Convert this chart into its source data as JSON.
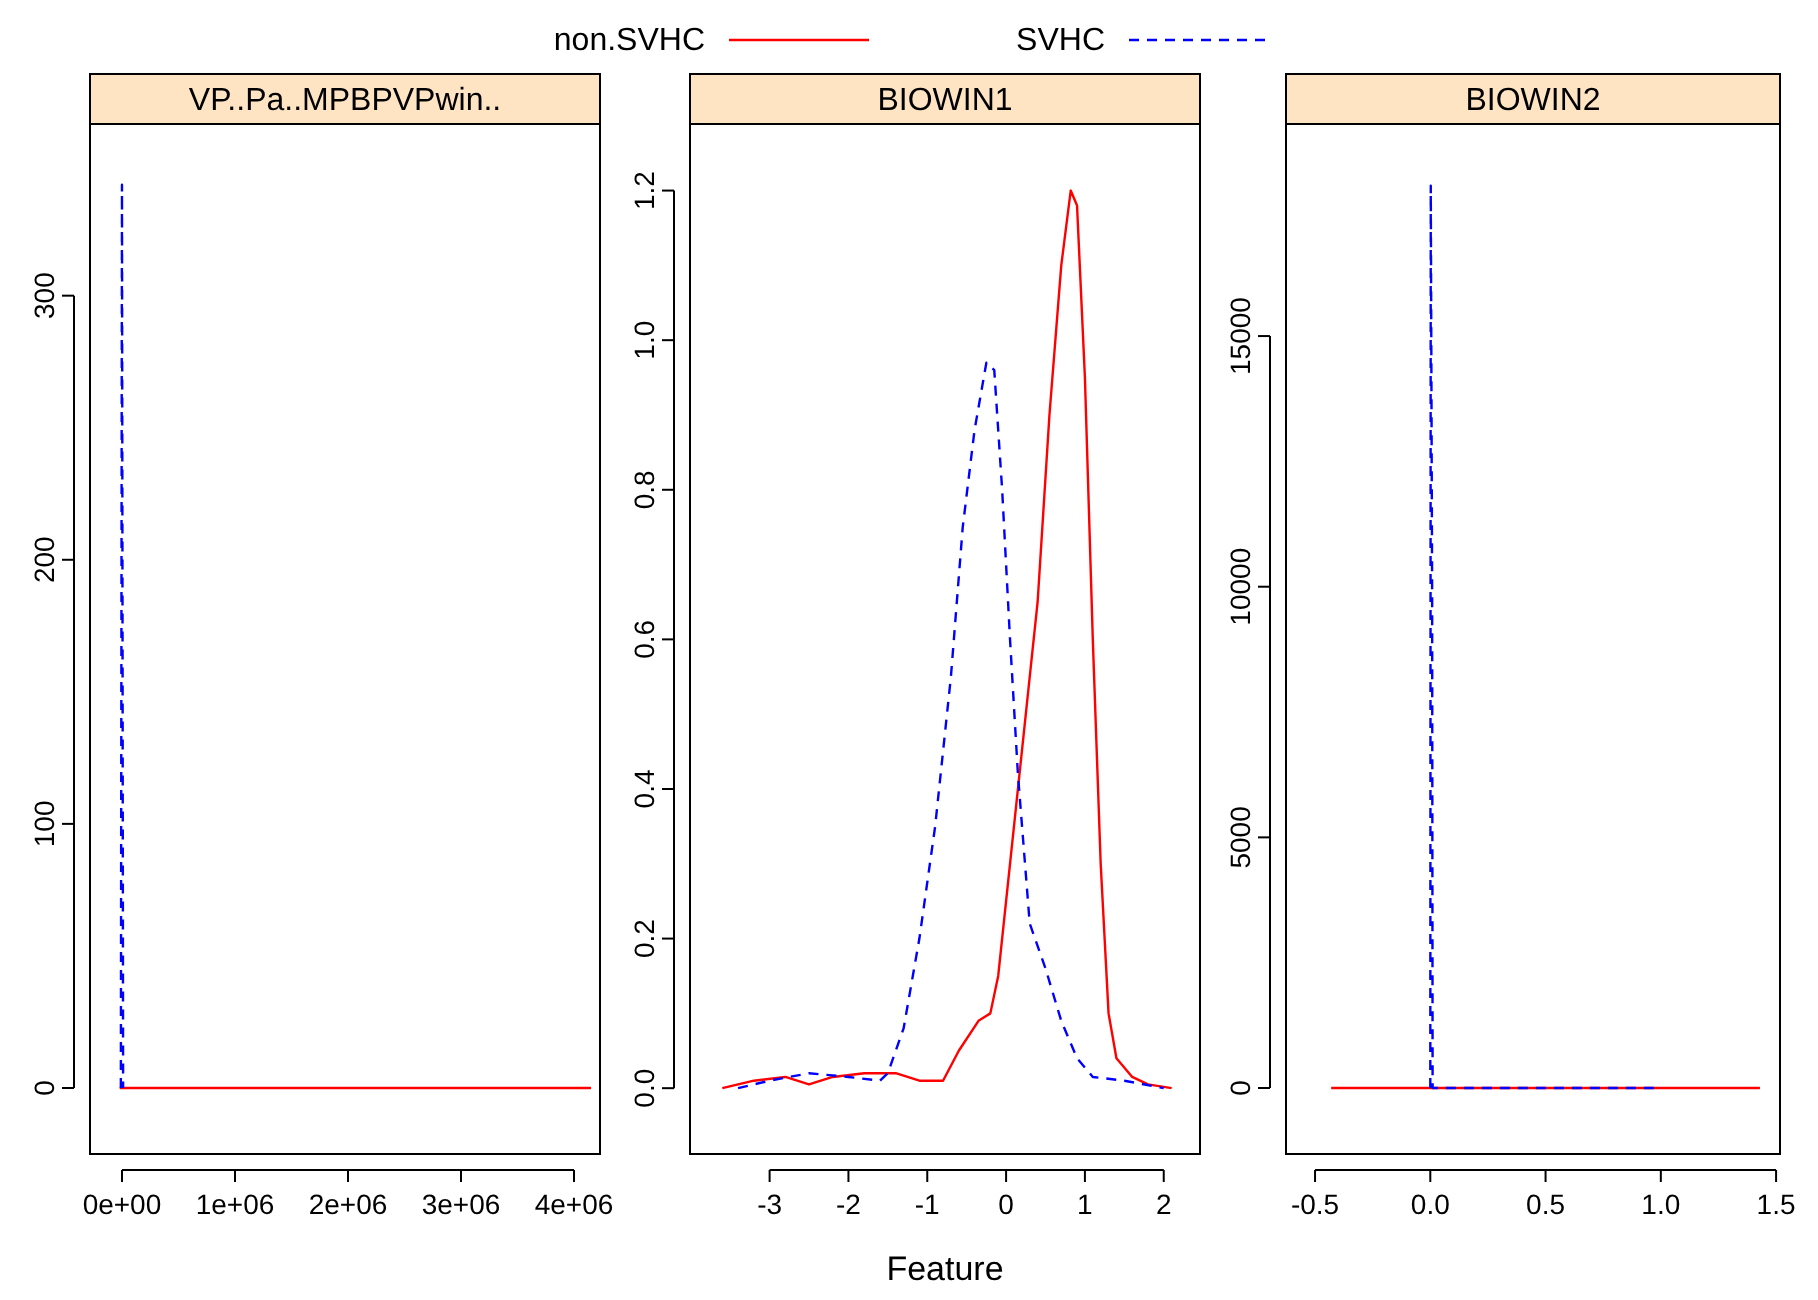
{
  "chart_data": [
    {
      "type": "line",
      "title": "VP..Pa..MPBPVPwin..",
      "xlim": [
        -283000,
        4230000
      ],
      "ylim": [
        -25,
        365
      ],
      "xticks": [
        {
          "value": 0,
          "label": "0e+00"
        },
        {
          "value": 1000000,
          "label": "1e+06"
        },
        {
          "value": 2000000,
          "label": "2e+06"
        },
        {
          "value": 3000000,
          "label": "3e+06"
        },
        {
          "value": 4000000,
          "label": "4e+06"
        }
      ],
      "yticks": [
        0,
        100,
        200,
        300
      ],
      "series": [
        {
          "color": "#ff0000",
          "line_style": "solid",
          "x": [
            -20000,
            0,
            20000,
            4150000
          ],
          "values": [
            0,
            0,
            0,
            0
          ]
        },
        {
          "color": "#0000ff",
          "line_style": "dashed",
          "x": [
            -10000,
            0,
            10000
          ],
          "values": [
            0,
            342,
            0
          ]
        }
      ]
    },
    {
      "type": "line",
      "title": "BIOWIN1",
      "xlabel": "Feature",
      "legend": "top",
      "xlim": [
        -4.01,
        2.46
      ],
      "ylim": [
        -0.088,
        1.289
      ],
      "xticks": [
        -3,
        -2,
        -1,
        0,
        1,
        2
      ],
      "yticks": [
        {
          "value": 0,
          "label": "0.0"
        },
        {
          "value": 0.2,
          "label": "0.2"
        },
        {
          "value": 0.4,
          "label": "0.4"
        },
        {
          "value": 0.6,
          "label": "0.6"
        },
        {
          "value": 0.8,
          "label": "0.8"
        },
        {
          "value": 1,
          "label": "1.0"
        },
        {
          "value": 1.2,
          "label": "1.2"
        }
      ],
      "series": [
        {
          "name": "non.SVHC",
          "color": "#ff0000",
          "line_style": "solid",
          "x": [
            -3.6,
            -3.2,
            -2.8,
            -2.5,
            -2.2,
            -1.8,
            -1.4,
            -1.1,
            -0.8,
            -0.6,
            -0.35,
            -0.2,
            -0.1,
            0,
            0.2,
            0.4,
            0.55,
            0.7,
            0.82,
            0.9,
            1.0,
            1.1,
            1.2,
            1.3,
            1.4,
            1.6,
            1.8,
            2.1
          ],
          "values": [
            0,
            0.01,
            0.015,
            0.005,
            0.015,
            0.02,
            0.02,
            0.01,
            0.01,
            0.05,
            0.09,
            0.1,
            0.15,
            0.25,
            0.45,
            0.65,
            0.9,
            1.1,
            1.2,
            1.18,
            0.95,
            0.6,
            0.3,
            0.1,
            0.04,
            0.015,
            0.005,
            0
          ]
        },
        {
          "name": "SVHC",
          "color": "#0000ff",
          "line_style": "dashed",
          "x": [
            -3.4,
            -3,
            -2.5,
            -2,
            -1.6,
            -1.5,
            -1.3,
            -1.1,
            -0.9,
            -0.7,
            -0.55,
            -0.4,
            -0.25,
            -0.15,
            -0.05,
            0.05,
            0.15,
            0.3,
            0.5,
            0.7,
            0.9,
            1.1,
            1.5,
            2.0
          ],
          "values": [
            0,
            0.01,
            0.02,
            0.015,
            0.01,
            0.02,
            0.08,
            0.2,
            0.35,
            0.55,
            0.75,
            0.88,
            0.97,
            0.96,
            0.8,
            0.6,
            0.42,
            0.22,
            0.16,
            0.09,
            0.04,
            0.015,
            0.01,
            0
          ]
        }
      ]
    },
    {
      "type": "line",
      "title": "BIOWIN2",
      "xlim": [
        -0.626,
        1.517
      ],
      "ylim": [
        -1316,
        19230
      ],
      "xticks": [
        -0.5,
        {
          "value": 0,
          "label": "0.0"
        },
        0.5,
        {
          "value": 1,
          "label": "1.0"
        },
        1.5
      ],
      "yticks": [
        0,
        5000,
        10000,
        15000
      ],
      "series": [
        {
          "color": "#ff0000",
          "line_style": "solid",
          "x": [
            -0.43,
            1.43
          ],
          "values": [
            0,
            0
          ]
        },
        {
          "color": "#0000ff",
          "line_style": "dashed",
          "x": [
            0,
            0.002,
            0.008,
            0.01,
            1
          ],
          "values": [
            0,
            18000,
            9800,
            0,
            0
          ]
        }
      ]
    }
  ]
}
